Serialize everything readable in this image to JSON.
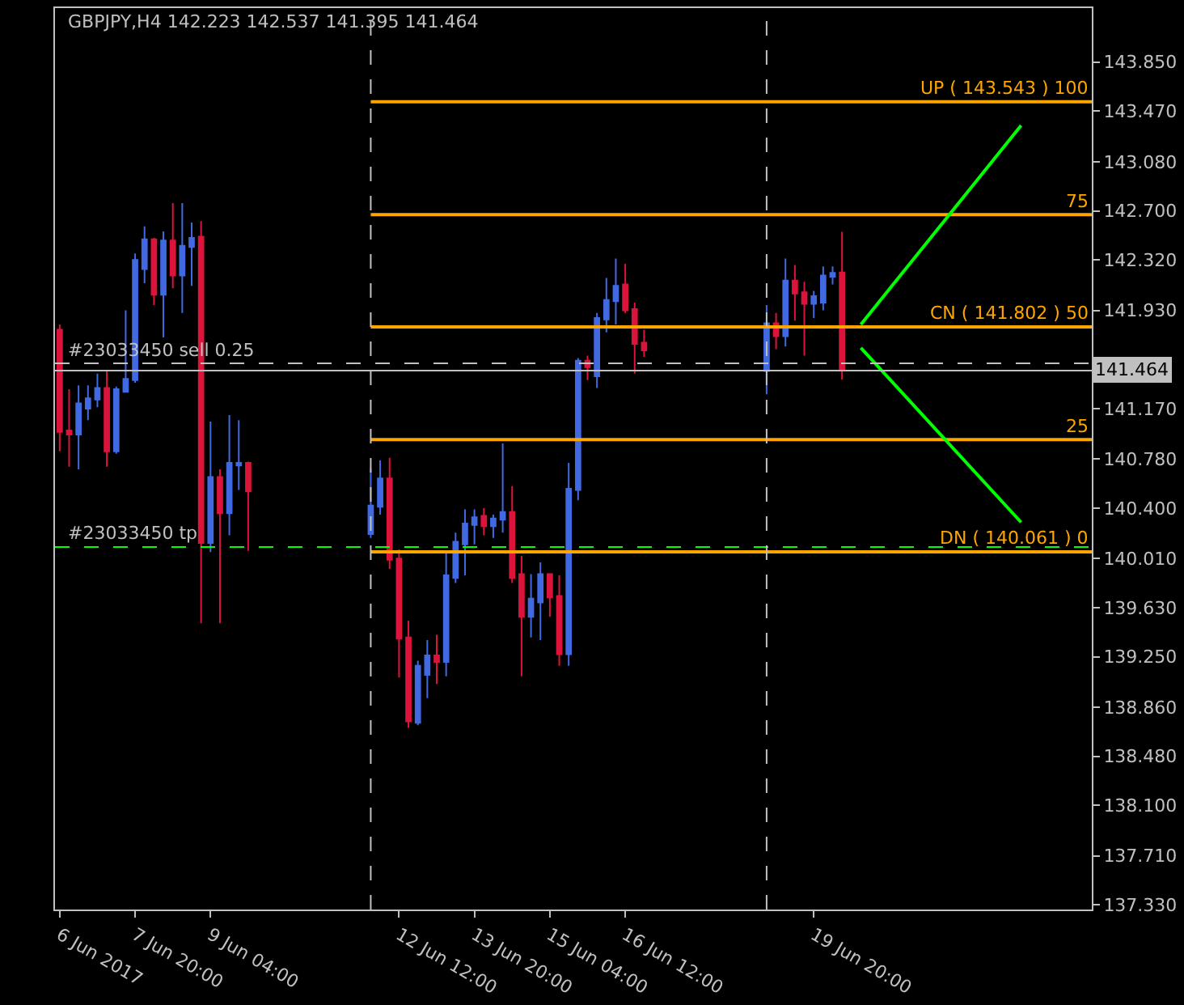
{
  "chart_data": {
    "type": "candlestick",
    "title": "GBPJPY,H4 142.223 142.537 141.395 141.464",
    "x": [
      "2017-06-06T12:00",
      "2017-06-06T16:00",
      "2017-06-06T20:00",
      "2017-06-07T00:00",
      "2017-06-07T04:00",
      "2017-06-07T08:00",
      "2017-06-07T12:00",
      "2017-06-07T16:00",
      "2017-06-07T20:00",
      "2017-06-08T00:00",
      "2017-06-08T04:00",
      "2017-06-08T08:00",
      "2017-06-08T12:00",
      "2017-06-08T16:00",
      "2017-06-08T20:00",
      "2017-06-09T00:00",
      "2017-06-09T04:00",
      "2017-06-09T08:00",
      "2017-06-09T12:00",
      "2017-06-09T16:00",
      "2017-06-09T20:00",
      "2017-06-12T00:00",
      "2017-06-12T04:00",
      "2017-06-12T08:00",
      "2017-06-12T12:00",
      "2017-06-12T16:00",
      "2017-06-12T20:00",
      "2017-06-13T00:00",
      "2017-06-13T04:00",
      "2017-06-13T08:00",
      "2017-06-13T12:00",
      "2017-06-13T16:00",
      "2017-06-13T20:00",
      "2017-06-14T00:00",
      "2017-06-14T04:00",
      "2017-06-14T08:00",
      "2017-06-14T12:00",
      "2017-06-14T16:00",
      "2017-06-14T20:00",
      "2017-06-15T00:00",
      "2017-06-15T04:00",
      "2017-06-15T08:00",
      "2017-06-15T12:00",
      "2017-06-15T16:00",
      "2017-06-15T20:00",
      "2017-06-16T00:00",
      "2017-06-16T04:00",
      "2017-06-16T08:00",
      "2017-06-16T12:00",
      "2017-06-16T16:00",
      "2017-06-16T20:00",
      "2017-06-19T00:00",
      "2017-06-19T04:00",
      "2017-06-19T08:00",
      "2017-06-19T12:00",
      "2017-06-19T16:00",
      "2017-06-19T20:00",
      "2017-06-20T00:00",
      "2017-06-20T04:00",
      "2017-06-20T08:00"
    ],
    "ohlc": [
      [
        141.78,
        141.82,
        140.84,
        140.99
      ],
      [
        141.0,
        141.32,
        140.72,
        140.97
      ],
      [
        140.97,
        141.35,
        140.7,
        141.21
      ],
      [
        141.17,
        141.35,
        141.08,
        141.25
      ],
      [
        141.24,
        141.44,
        141.18,
        141.33
      ],
      [
        141.33,
        141.46,
        140.72,
        140.84
      ],
      [
        140.84,
        141.34,
        140.82,
        141.32
      ],
      [
        141.3,
        141.93,
        141.3,
        141.4
      ],
      [
        141.39,
        142.37,
        141.37,
        142.32
      ],
      [
        142.25,
        142.58,
        142.14,
        142.48
      ],
      [
        142.48,
        142.49,
        141.97,
        142.05
      ],
      [
        142.05,
        142.54,
        141.72,
        142.47
      ],
      [
        142.47,
        142.76,
        142.1,
        142.2
      ],
      [
        142.2,
        142.76,
        141.91,
        142.43
      ],
      [
        142.42,
        142.61,
        142.12,
        142.49
      ],
      [
        142.5,
        142.62,
        139.51,
        140.13
      ],
      [
        140.13,
        141.07,
        140.06,
        140.64
      ],
      [
        140.64,
        140.7,
        139.51,
        140.36
      ],
      [
        140.36,
        141.12,
        140.19,
        140.75
      ],
      [
        140.73,
        141.08,
        140.54,
        140.75
      ],
      [
        140.75,
        140.76,
        140.07,
        140.53
      ],
      [
        140.2,
        140.71,
        140.17,
        140.42
      ],
      [
        140.41,
        140.77,
        140.35,
        140.63
      ],
      [
        140.63,
        140.79,
        139.93,
        140.0
      ],
      [
        140.01,
        140.08,
        139.09,
        139.39
      ],
      [
        139.4,
        139.53,
        138.7,
        138.75
      ],
      [
        138.74,
        139.22,
        138.72,
        139.18
      ],
      [
        139.11,
        139.38,
        138.93,
        139.26
      ],
      [
        139.26,
        139.42,
        139.04,
        139.21
      ],
      [
        139.21,
        140.06,
        139.1,
        139.88
      ],
      [
        139.86,
        140.21,
        139.82,
        140.14
      ],
      [
        140.12,
        140.39,
        139.88,
        140.28
      ],
      [
        140.27,
        140.39,
        140.12,
        140.33
      ],
      [
        140.34,
        140.4,
        140.19,
        140.26
      ],
      [
        140.26,
        140.35,
        140.17,
        140.32
      ],
      [
        140.31,
        140.9,
        140.21,
        140.37
      ],
      [
        140.37,
        140.57,
        139.82,
        139.86
      ],
      [
        139.89,
        140.03,
        139.1,
        139.56
      ],
      [
        139.56,
        139.89,
        139.4,
        139.7
      ],
      [
        139.67,
        139.98,
        139.38,
        139.89
      ],
      [
        139.89,
        139.89,
        139.56,
        139.71
      ],
      [
        139.72,
        139.88,
        139.18,
        139.27
      ],
      [
        139.27,
        140.75,
        139.18,
        140.55
      ],
      [
        140.54,
        141.56,
        140.46,
        141.54
      ],
      [
        141.54,
        141.58,
        141.39,
        141.49
      ],
      [
        141.42,
        141.91,
        141.33,
        141.87
      ],
      [
        141.86,
        142.18,
        141.76,
        142.01
      ],
      [
        142.0,
        142.33,
        141.82,
        142.12
      ],
      [
        142.13,
        142.29,
        141.91,
        141.93
      ],
      [
        141.94,
        141.99,
        141.44,
        141.67
      ],
      [
        141.68,
        141.78,
        141.57,
        141.62
      ],
      [
        141.46,
        141.97,
        141.28,
        141.83
      ],
      [
        141.83,
        141.91,
        141.63,
        141.73
      ],
      [
        141.73,
        142.33,
        141.65,
        142.16
      ],
      [
        142.16,
        142.28,
        141.85,
        142.06
      ],
      [
        142.07,
        142.15,
        141.58,
        141.98
      ],
      [
        141.98,
        142.08,
        141.87,
        142.04
      ],
      [
        141.99,
        142.27,
        141.93,
        142.2
      ],
      [
        142.19,
        142.27,
        142.13,
        142.22
      ],
      [
        142.223,
        142.537,
        141.395,
        141.464
      ]
    ],
    "colors": [
      "#dc143c",
      "#dc143c",
      "#4169e1",
      "#4169e1",
      "#4169e1",
      "#dc143c",
      "#4169e1",
      "#4169e1",
      "#4169e1",
      "#4169e1",
      "#dc143c",
      "#4169e1",
      "#dc143c",
      "#4169e1",
      "#4169e1",
      "#dc143c",
      "#4169e1",
      "#dc143c",
      "#4169e1",
      "#4169e1",
      "#dc143c",
      "#4169e1",
      "#4169e1",
      "#dc143c",
      "#dc143c",
      "#dc143c",
      "#4169e1",
      "#4169e1",
      "#dc143c",
      "#4169e1",
      "#4169e1",
      "#4169e1",
      "#4169e1",
      "#dc143c",
      "#4169e1",
      "#4169e1",
      "#dc143c",
      "#dc143c",
      "#4169e1",
      "#4169e1",
      "#dc143c",
      "#dc143c",
      "#4169e1",
      "#4169e1",
      "#dc143c",
      "#4169e1",
      "#4169e1",
      "#4169e1",
      "#dc143c",
      "#dc143c",
      "#dc143c",
      "#4169e1",
      "#dc143c",
      "#4169e1",
      "#dc143c",
      "#dc143c",
      "#4169e1",
      "#4169e1",
      "#4169e1",
      "#dc143c"
    ],
    "series": [
      {
        "type": "line",
        "name": "UP ( 143.543 ) 100",
        "color": "#ffa500",
        "x": [
          "2017-06-12T00:00",
          "2017-06-24T18:00"
        ],
        "values": [
          143.543,
          143.543
        ]
      },
      {
        "type": "line",
        "name": "75",
        "color": "#ffa500",
        "x": [
          "2017-06-12T00:00",
          "2017-06-24T18:00"
        ],
        "values": [
          142.67,
          142.67
        ]
      },
      {
        "type": "line",
        "name": "CN ( 141.802 ) 50",
        "color": "#ffa500",
        "x": [
          "2017-06-12T00:00",
          "2017-06-24T18:00"
        ],
        "values": [
          141.802,
          141.802
        ]
      },
      {
        "type": "line",
        "name": "25",
        "color": "#ffa500",
        "x": [
          "2017-06-12T00:00",
          "2017-06-24T18:00"
        ],
        "values": [
          140.93,
          140.93
        ]
      },
      {
        "type": "line",
        "name": "DN ( 140.061 ) 0",
        "color": "#ffa500",
        "x": [
          "2017-06-12T00:00",
          "2017-06-24T18:00"
        ],
        "values": [
          140.061,
          140.061
        ]
      },
      {
        "type": "line",
        "color": "#00ff00",
        "x": [
          "2017-06-20T16:00",
          "2017-06-23T12:00"
        ],
        "values": [
          141.82,
          143.36
        ]
      },
      {
        "type": "line",
        "color": "#00ff00",
        "x": [
          "2017-06-20T16:00",
          "2017-06-23T12:00"
        ],
        "values": [
          141.64,
          140.29
        ]
      }
    ],
    "ref_lines": [
      {
        "axis": "y",
        "value": 141.52,
        "label": "#23033450 sell 0.25",
        "color": "#c0c0c0",
        "line_style": "dashed"
      },
      {
        "axis": "y",
        "value": 140.1,
        "label": "#23033450 tp",
        "color": "#00ff00",
        "line_style": "dashed"
      },
      {
        "axis": "y",
        "value": 141.464,
        "label": "141.464",
        "color": "#c0c0c0",
        "line_style": "solid"
      },
      {
        "axis": "x",
        "value": "2017-06-12T00:00",
        "color": "#c0c0c0",
        "line_style": "dashed"
      },
      {
        "axis": "x",
        "value": "2017-06-19T00:00",
        "color": "#c0c0c0",
        "line_style": "dashed"
      }
    ],
    "xlim": [
      "2017-06-06T10:00",
      "2017-06-24T18:00"
    ],
    "xticks": [
      {
        "value": "2017-06-06T12:00",
        "label": "6 Jun 2017"
      },
      {
        "value": "2017-06-07T20:00",
        "label": "7 Jun 20:00"
      },
      {
        "value": "2017-06-09T04:00",
        "label": "9 Jun 04:00"
      },
      {
        "value": "2017-06-12T12:00",
        "label": "12 Jun 12:00"
      },
      {
        "value": "2017-06-13T20:00",
        "label": "13 Jun 20:00"
      },
      {
        "value": "2017-06-15T04:00",
        "label": "15 Jun 04:00"
      },
      {
        "value": "2017-06-16T12:00",
        "label": "16 Jun 12:00"
      },
      {
        "value": "2017-06-19T20:00",
        "label": "19 Jun 20:00"
      }
    ],
    "ylim": [
      137.295,
      144.268
    ],
    "yticks": [
      {
        "value": 143.85,
        "label": "143.850"
      },
      {
        "value": 143.47,
        "label": "143.470"
      },
      {
        "value": 143.08,
        "label": "143.080"
      },
      {
        "value": 142.7,
        "label": "142.700"
      },
      {
        "value": 142.32,
        "label": "142.320"
      },
      {
        "value": 141.93,
        "label": "141.930"
      },
      {
        "value": 141.55,
        "label": null
      },
      {
        "value": 141.17,
        "label": "141.170"
      },
      {
        "value": 140.78,
        "label": "140.780"
      },
      {
        "value": 140.4,
        "label": "140.400"
      },
      {
        "value": 140.01,
        "label": "140.010"
      },
      {
        "value": 139.63,
        "label": "139.630"
      },
      {
        "value": 139.25,
        "label": "139.250"
      },
      {
        "value": 138.86,
        "label": "138.860"
      },
      {
        "value": 138.48,
        "label": "138.480"
      },
      {
        "value": 138.1,
        "label": "138.100"
      },
      {
        "value": 137.71,
        "label": "137.710"
      },
      {
        "value": 137.33,
        "label": "137.330"
      }
    ]
  }
}
